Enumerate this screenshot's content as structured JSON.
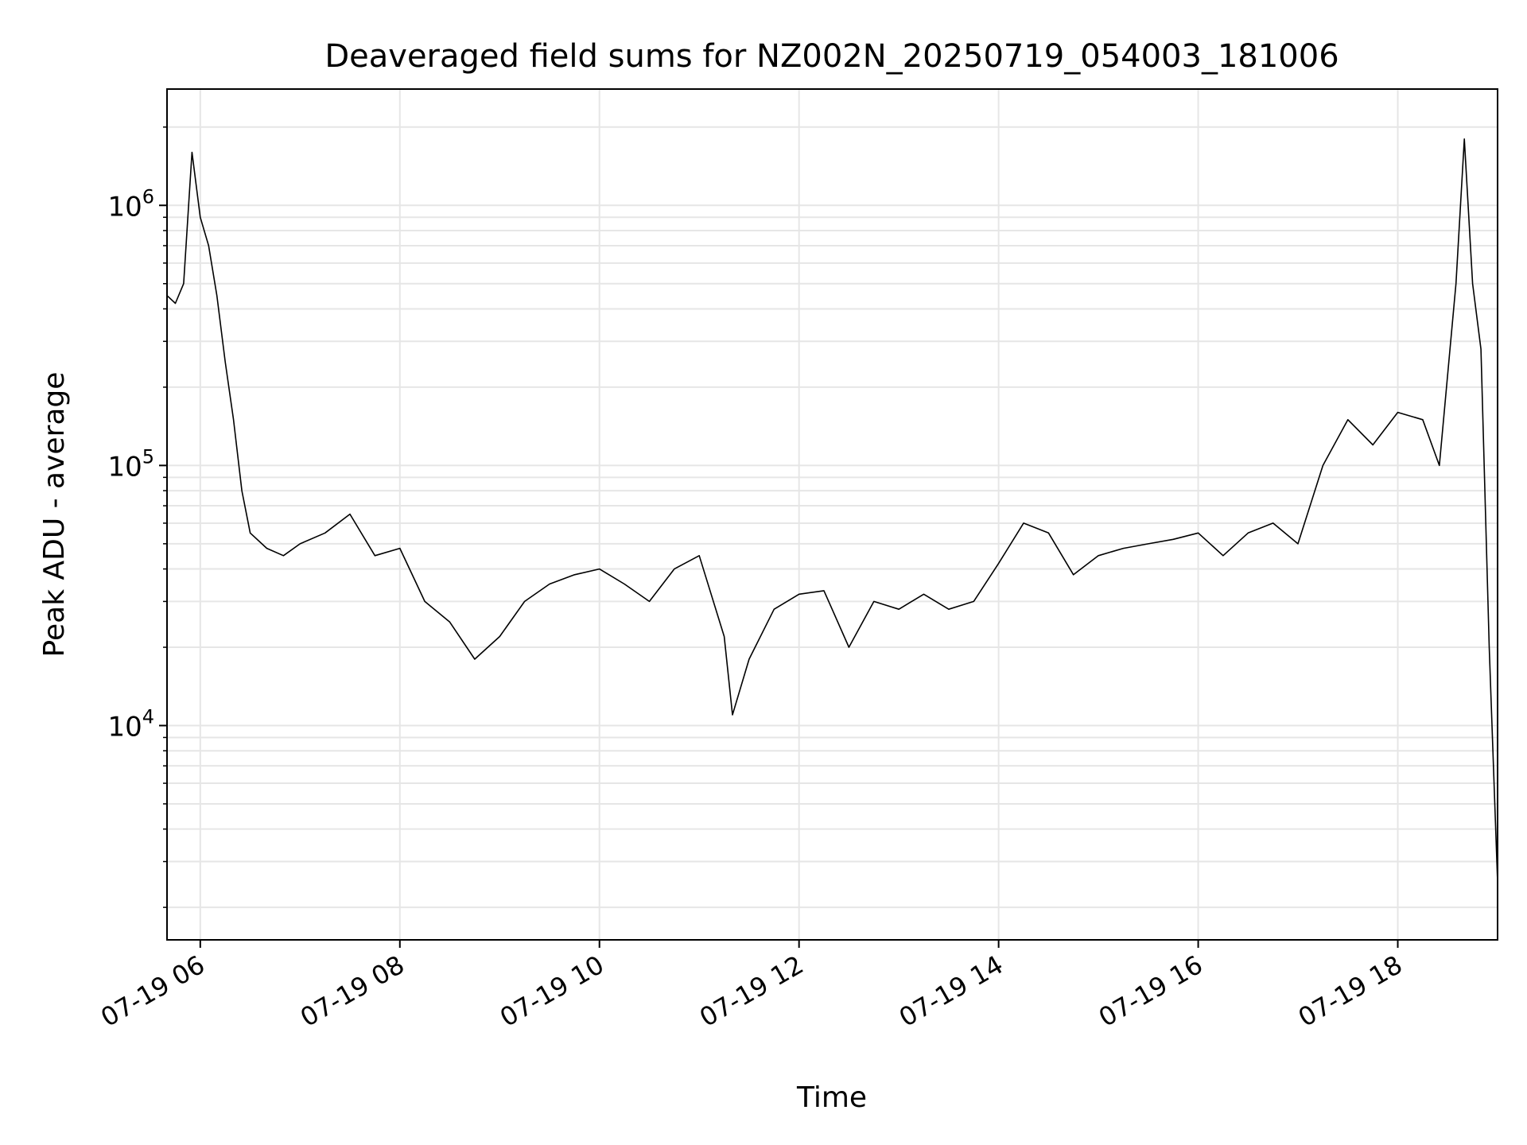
{
  "chart_data": {
    "type": "line",
    "title": "Deaveraged field sums for NZ002N_20250719_054003_181006",
    "xlabel": "Time",
    "ylabel": "Peak ADU - average",
    "yscale": "log",
    "xlim": [
      "2025-07-19 05:40",
      "2025-07-19 19:00"
    ],
    "ylim": [
      1500,
      2800000
    ],
    "grid": true,
    "line_color": "#000000",
    "xticks": [
      {
        "t": "2025-07-19 06:00",
        "label": "07-19 06"
      },
      {
        "t": "2025-07-19 08:00",
        "label": "07-19 08"
      },
      {
        "t": "2025-07-19 10:00",
        "label": "07-19 10"
      },
      {
        "t": "2025-07-19 12:00",
        "label": "07-19 12"
      },
      {
        "t": "2025-07-19 14:00",
        "label": "07-19 14"
      },
      {
        "t": "2025-07-19 16:00",
        "label": "07-19 16"
      },
      {
        "t": "2025-07-19 18:00",
        "label": "07-19 18"
      }
    ],
    "yticks": [
      {
        "v": 10000,
        "base": "10",
        "exp": "4"
      },
      {
        "v": 100000,
        "base": "10",
        "exp": "5"
      },
      {
        "v": 1000000,
        "base": "10",
        "exp": "6"
      }
    ],
    "series": [
      {
        "x": [
          "2025-07-19 05:40",
          "2025-07-19 05:45",
          "2025-07-19 05:50",
          "2025-07-19 05:55",
          "2025-07-19 06:00",
          "2025-07-19 06:05",
          "2025-07-19 06:10",
          "2025-07-19 06:15",
          "2025-07-19 06:20",
          "2025-07-19 06:25",
          "2025-07-19 06:30",
          "2025-07-19 06:40",
          "2025-07-19 06:50",
          "2025-07-19 07:00",
          "2025-07-19 07:15",
          "2025-07-19 07:30",
          "2025-07-19 07:45",
          "2025-07-19 08:00",
          "2025-07-19 08:15",
          "2025-07-19 08:30",
          "2025-07-19 08:45",
          "2025-07-19 09:00",
          "2025-07-19 09:15",
          "2025-07-19 09:30",
          "2025-07-19 09:45",
          "2025-07-19 10:00",
          "2025-07-19 10:15",
          "2025-07-19 10:30",
          "2025-07-19 10:45",
          "2025-07-19 11:00",
          "2025-07-19 11:15",
          "2025-07-19 11:20",
          "2025-07-19 11:30",
          "2025-07-19 11:45",
          "2025-07-19 12:00",
          "2025-07-19 12:15",
          "2025-07-19 12:30",
          "2025-07-19 12:45",
          "2025-07-19 13:00",
          "2025-07-19 13:15",
          "2025-07-19 13:30",
          "2025-07-19 13:45",
          "2025-07-19 14:00",
          "2025-07-19 14:15",
          "2025-07-19 14:30",
          "2025-07-19 14:45",
          "2025-07-19 15:00",
          "2025-07-19 15:15",
          "2025-07-19 15:30",
          "2025-07-19 15:45",
          "2025-07-19 16:00",
          "2025-07-19 16:15",
          "2025-07-19 16:30",
          "2025-07-19 16:45",
          "2025-07-19 17:00",
          "2025-07-19 17:15",
          "2025-07-19 17:30",
          "2025-07-19 17:45",
          "2025-07-19 18:00",
          "2025-07-19 18:15",
          "2025-07-19 18:25",
          "2025-07-19 18:35",
          "2025-07-19 18:40",
          "2025-07-19 18:45",
          "2025-07-19 18:50",
          "2025-07-19 18:55",
          "2025-07-19 19:00"
        ],
        "y": [
          450000,
          420000,
          500000,
          1600000,
          900000,
          700000,
          450000,
          250000,
          150000,
          80000,
          55000,
          48000,
          45000,
          50000,
          55000,
          65000,
          45000,
          48000,
          30000,
          25000,
          18000,
          22000,
          30000,
          35000,
          38000,
          40000,
          35000,
          30000,
          40000,
          45000,
          22000,
          11000,
          18000,
          28000,
          32000,
          33000,
          20000,
          30000,
          28000,
          32000,
          28000,
          30000,
          42000,
          60000,
          55000,
          38000,
          45000,
          48000,
          50000,
          52000,
          55000,
          45000,
          55000,
          60000,
          50000,
          100000,
          150000,
          120000,
          160000,
          150000,
          100000,
          500000,
          1800000,
          500000,
          280000,
          20000,
          2500
        ]
      }
    ]
  }
}
